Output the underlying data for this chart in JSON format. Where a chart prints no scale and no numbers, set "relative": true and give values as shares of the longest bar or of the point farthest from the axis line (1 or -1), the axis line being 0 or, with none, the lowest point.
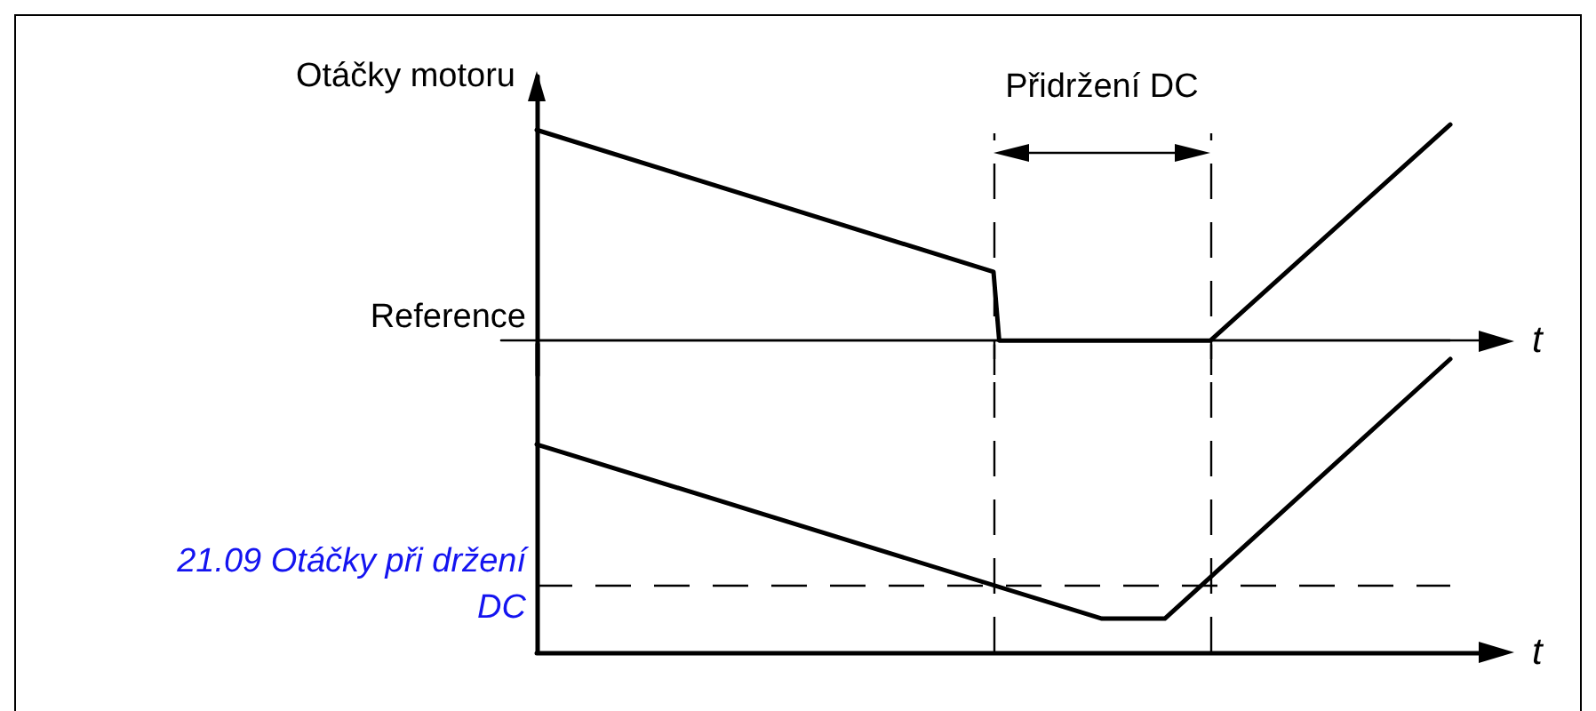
{
  "chart_data": [
    {
      "type": "line",
      "ylabel": "Otáčky motoru",
      "xlabel": "t",
      "relative": true,
      "marker": "none",
      "color": "#000000",
      "categories": [
        null,
        null,
        null,
        null,
        null,
        null,
        null,
        null,
        null,
        null,
        null,
        null,
        null,
        null,
        null,
        null,
        null,
        null,
        null,
        null,
        null,
        null,
        null,
        null,
        null,
        null,
        null,
        null,
        null,
        null,
        null,
        null,
        null,
        null,
        null,
        null,
        null,
        null,
        null,
        null,
        null,
        null,
        null,
        null,
        null,
        null,
        null,
        null,
        null,
        null,
        null,
        null,
        null,
        null,
        null,
        null,
        null,
        null,
        null,
        null,
        null,
        null,
        null,
        null,
        null,
        null,
        null,
        null,
        null,
        null,
        null,
        null,
        null,
        null,
        null,
        null,
        null,
        null,
        null,
        null,
        null,
        null,
        null,
        null,
        null,
        null,
        null,
        null,
        null,
        null,
        null,
        null,
        null,
        null,
        null,
        null,
        null,
        null,
        null,
        null,
        null,
        null,
        null,
        null,
        null,
        null,
        null,
        null,
        null,
        null,
        null,
        null,
        null,
        null,
        null,
        null,
        null,
        null,
        null,
        null,
        null,
        null,
        null,
        null,
        null,
        null,
        null,
        null,
        null,
        null,
        null,
        null,
        null,
        null,
        null,
        null,
        null,
        null,
        null,
        null,
        null,
        null,
        null,
        null,
        null,
        null,
        null,
        null,
        null,
        null,
        null,
        null,
        null,
        null,
        null,
        null,
        null,
        null,
        null,
        null,
        null
      ],
      "values": [
        0.975,
        null,
        null,
        null,
        null,
        null,
        null,
        null,
        null,
        null,
        null,
        null,
        null,
        null,
        null,
        null,
        null,
        null,
        null,
        null,
        null,
        null,
        null,
        null,
        null,
        null,
        null,
        null,
        null,
        null,
        null,
        null,
        null,
        null,
        null,
        null,
        null,
        null,
        null,
        null,
        null,
        null,
        null,
        null,
        null,
        null,
        null,
        null,
        null,
        null,
        null,
        null,
        null,
        null,
        null,
        null,
        null,
        null,
        null,
        null,
        null,
        null,
        null,
        null,
        null,
        null,
        null,
        null,
        null,
        null,
        null,
        null,
        null,
        null,
        null,
        null,
        null,
        null,
        null,
        null,
        0.318,
        0,
        null,
        null,
        null,
        null,
        null,
        null,
        null,
        null,
        null,
        null,
        null,
        null,
        null,
        null,
        null,
        null,
        null,
        null,
        null,
        null,
        null,
        null,
        null,
        null,
        null,
        null,
        null,
        null,
        null,
        null,
        null,
        null,
        null,
        null,
        null,
        null,
        0,
        null,
        null,
        null,
        null,
        null,
        null,
        null,
        null,
        null,
        null,
        null,
        null,
        null,
        null,
        null,
        null,
        null,
        null,
        null,
        null,
        null,
        null,
        null,
        null,
        null,
        null,
        null,
        null,
        null,
        null,
        null,
        null,
        null,
        null,
        null,
        null,
        null,
        null,
        null,
        null,
        null,
        1
      ],
      "ref_lines": [
        {
          "axis": "y",
          "value": 0,
          "label": "Reference"
        }
      ],
      "annotations": [
        "Přidržení DC"
      ]
    },
    {
      "type": "line",
      "xlabel": "t",
      "relative": true,
      "marker": "none",
      "color": "#000000",
      "categories": [
        null,
        null,
        null,
        null,
        null,
        null,
        null,
        null,
        null,
        null,
        null,
        null,
        null,
        null,
        null,
        null,
        null,
        null,
        null,
        null,
        null,
        null,
        null,
        null,
        null,
        null,
        null,
        null,
        null,
        null,
        null,
        null,
        null,
        null,
        null,
        null,
        null,
        null,
        null,
        null,
        null,
        null,
        null,
        null,
        null,
        null,
        null,
        null,
        null,
        null,
        null,
        null,
        null,
        null,
        null,
        null,
        null,
        null,
        null,
        null,
        null,
        null,
        null,
        null,
        null,
        null,
        null,
        null,
        null,
        null,
        null,
        null,
        null,
        null,
        null,
        null,
        null,
        null,
        null,
        null,
        null,
        null,
        null,
        null,
        null,
        null,
        null,
        null,
        null,
        null,
        null,
        null,
        null,
        null,
        null,
        null,
        null,
        null,
        null,
        null,
        null,
        null,
        null,
        null,
        null,
        null,
        null,
        null,
        null,
        null,
        null,
        null,
        null,
        null,
        null,
        null,
        null,
        null,
        null,
        null,
        null,
        null,
        null,
        null,
        null,
        null,
        null,
        null,
        null,
        null,
        null,
        null,
        null,
        null,
        null,
        null,
        null,
        null,
        null,
        null,
        null,
        null,
        null,
        null,
        null,
        null,
        null,
        null,
        null,
        null,
        null,
        null,
        null,
        null,
        null,
        null,
        null,
        null,
        null,
        null,
        null
      ],
      "values": [
        0.709,
        null,
        null,
        null,
        null,
        null,
        null,
        null,
        null,
        null,
        null,
        null,
        null,
        null,
        null,
        null,
        null,
        null,
        null,
        null,
        null,
        null,
        null,
        null,
        null,
        null,
        null,
        null,
        null,
        null,
        null,
        null,
        null,
        null,
        null,
        null,
        null,
        null,
        null,
        null,
        null,
        null,
        null,
        null,
        null,
        null,
        null,
        null,
        null,
        null,
        null,
        null,
        null,
        null,
        null,
        null,
        null,
        null,
        null,
        null,
        null,
        null,
        null,
        null,
        null,
        null,
        null,
        null,
        null,
        null,
        null,
        null,
        null,
        null,
        null,
        null,
        null,
        null,
        null,
        null,
        null,
        null,
        null,
        null,
        null,
        null,
        null,
        null,
        null,
        null,
        null,
        null,
        null,
        null,
        null,
        null,
        null,
        null,
        null,
        0.115,
        null,
        null,
        null,
        null,
        null,
        null,
        null,
        null,
        null,
        null,
        0.115,
        null,
        null,
        null,
        null,
        null,
        null,
        null,
        null,
        null,
        null,
        null,
        null,
        null,
        null,
        null,
        null,
        null,
        null,
        null,
        null,
        null,
        null,
        null,
        null,
        null,
        null,
        null,
        null,
        null,
        null,
        null,
        null,
        null,
        null,
        null,
        null,
        null,
        null,
        null,
        null,
        null,
        null,
        null,
        null,
        null,
        null,
        null,
        null,
        null,
        1
      ],
      "ref_lines": [
        {
          "axis": "y",
          "value": 0.23,
          "label": "21.09 Otáčky při držení DC",
          "line_style": "dashed"
        }
      ]
    }
  ]
}
